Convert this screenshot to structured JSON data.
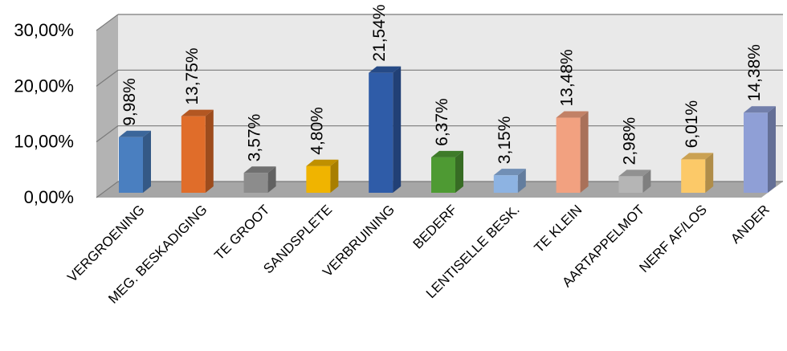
{
  "chart_data": {
    "type": "bar",
    "style": "3d-column",
    "title": "",
    "xlabel": "",
    "ylabel": "",
    "ylim": [
      0,
      0.3
    ],
    "y_ticks": [
      "0,00%",
      "10,00%",
      "20,00%",
      "30,00%"
    ],
    "grid": true,
    "legend": "none",
    "categories": [
      "VERGROENING",
      "MEG. BESKADIGING",
      "TE GROOT",
      "SANDSPLETE",
      "VERBRUINING",
      "BEDERF",
      "LENTISELLE BESK.",
      "TE KLEIN",
      "AARTAPPELMOT",
      "NERF AF/LOS",
      "ANDER"
    ],
    "values": [
      0.0998,
      0.1375,
      0.0357,
      0.048,
      0.2154,
      0.0637,
      0.0315,
      0.1348,
      0.0298,
      0.0601,
      0.1438
    ],
    "data_labels": [
      "9,98%",
      "13,75%",
      "3,57%",
      "4,80%",
      "21,54%",
      "6,37%",
      "3,15%",
      "13,48%",
      "2,98%",
      "6,01%",
      "14,38%"
    ],
    "colors": [
      "#4a7fc0",
      "#e06d2a",
      "#8c8c8c",
      "#f0b400",
      "#2f5ca8",
      "#4e9a33",
      "#8db3e2",
      "#f2a180",
      "#b5b5b5",
      "#fcc968",
      "#8f9fd6"
    ]
  }
}
